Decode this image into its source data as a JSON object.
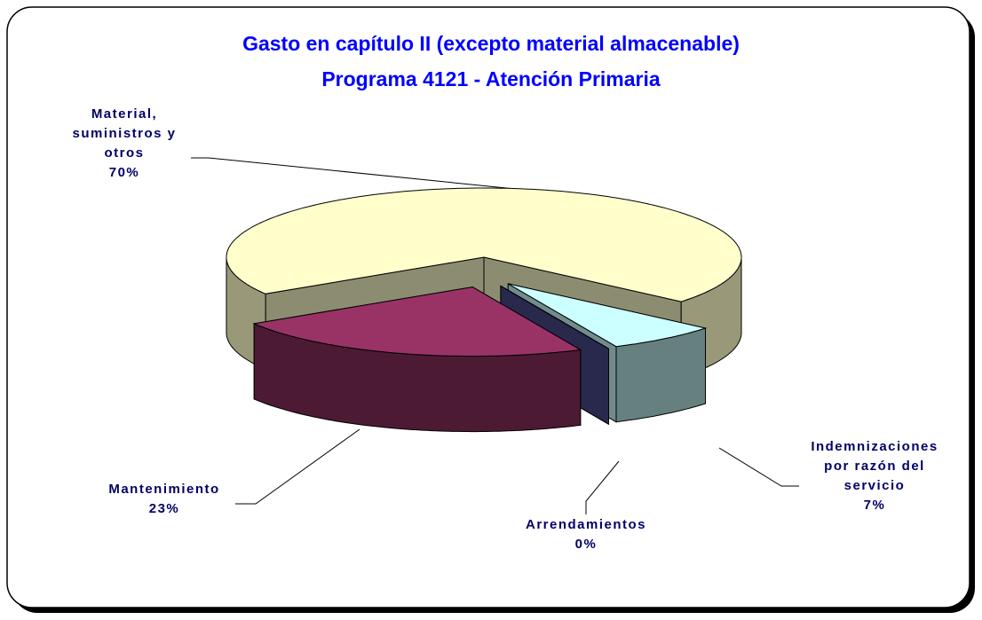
{
  "chart_data": {
    "type": "pie3d",
    "title": "Gasto en capítulo II (excepto material almacenable)",
    "subtitle": "Programa 4121 - Atención Primaria",
    "categories": [
      "Material, suministros y otros",
      "Mantenimiento",
      "Arrendamientos",
      "Indemnizaciones por razón del servicio"
    ],
    "values": [
      70,
      23,
      0,
      7
    ],
    "value_labels": [
      "70%",
      "23%",
      "0%",
      "7%"
    ],
    "colors": [
      "#FFFFCC",
      "#993366",
      "#4B4B8C",
      "#CCFFFF"
    ]
  }
}
